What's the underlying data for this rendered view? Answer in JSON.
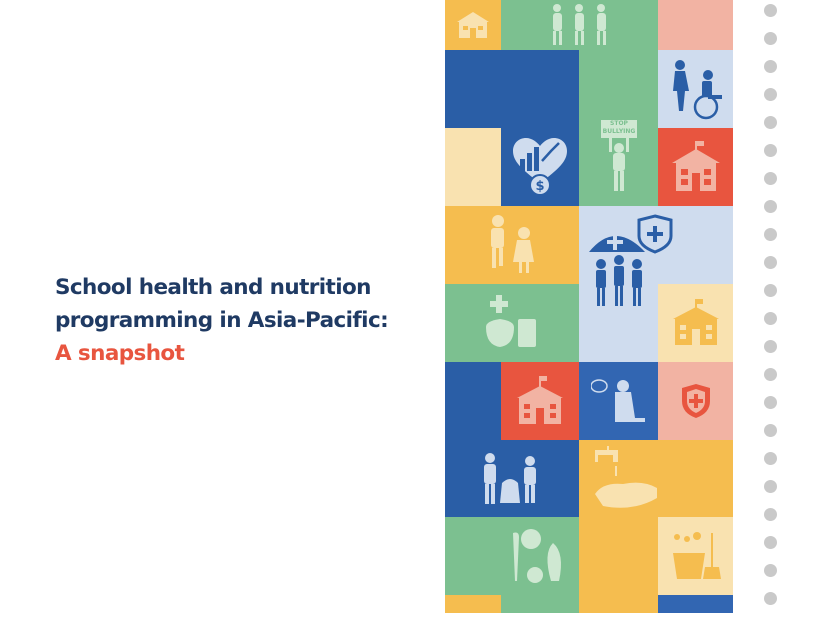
{
  "cover": {
    "title_line1": "School health and nutrition",
    "title_line2": "programming in Asia-Pacific:",
    "subtitle": "A snapshot"
  },
  "illustration": {
    "sign_line1": "STOP",
    "sign_line2": "BULLYING"
  },
  "colors": {
    "navy": "#1f3a63",
    "accent_red": "#e8553f",
    "yellow": "#f5bd4f",
    "light_yellow": "#f9e2b0",
    "green": "#7cc090",
    "blue": "#2a5ea6",
    "light_blue": "#cfdcee",
    "red": "#e8553f",
    "salmon": "#f2b3a3"
  },
  "icons": [
    "school-icon",
    "children-walking-icon",
    "wheelchair-icon",
    "heart-chart-dollar-icon",
    "stop-bullying-child-icon",
    "students-icon",
    "umbrella-health-icon",
    "shield-cross-icon",
    "food-icon",
    "sad-child-icon",
    "shield-icon",
    "cleanup-icon",
    "handwashing-icon",
    "vegetables-icon",
    "cleaning-supplies-icon"
  ]
}
